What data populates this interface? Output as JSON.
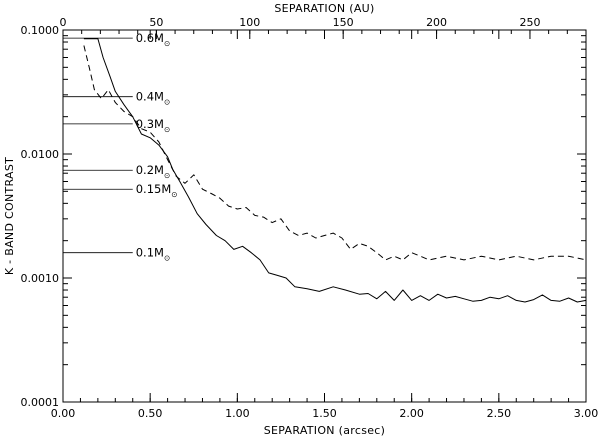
{
  "chart_data": {
    "type": "line",
    "title": "",
    "xlabel": "SEPARATION (arcsec)",
    "ylabel": "K - BAND CONTRAST",
    "top_xlabel": "SEPARATION (AU)",
    "xlim": [
      0,
      3.0
    ],
    "ylim": [
      0.0001,
      0.1
    ],
    "yscale": "log",
    "top_xlim": [
      0,
      280
    ],
    "x_ticks": [
      "0.00",
      "0.50",
      "1.00",
      "1.50",
      "2.00",
      "2.50",
      "3.00"
    ],
    "x_tick_values": [
      0,
      0.5,
      1.0,
      1.5,
      2.0,
      2.5,
      3.0
    ],
    "y_ticks": [
      "0.0001",
      "0.0010",
      "0.0100",
      "0.1000"
    ],
    "y_tick_values": [
      0.0001,
      0.001,
      0.01,
      0.1
    ],
    "top_x_ticks": [
      "0",
      "50",
      "100",
      "150",
      "200",
      "250"
    ],
    "top_x_tick_values": [
      0,
      50,
      100,
      150,
      200,
      250
    ],
    "grid": false,
    "series": [
      {
        "style": "solid",
        "x": [
          0.12,
          0.17,
          0.2,
          0.23,
          0.27,
          0.3,
          0.35,
          0.4,
          0.45,
          0.5,
          0.55,
          0.6,
          0.63,
          0.67,
          0.72,
          0.77,
          0.82,
          0.88,
          0.93,
          0.98,
          1.03,
          1.08,
          1.13,
          1.18,
          1.23,
          1.28,
          1.33,
          1.4,
          1.47,
          1.55,
          1.62,
          1.7,
          1.75,
          1.8,
          1.85,
          1.9,
          1.95,
          2.0,
          2.05,
          2.1,
          2.15,
          2.2,
          2.25,
          2.3,
          2.35,
          2.4,
          2.45,
          2.5,
          2.55,
          2.6,
          2.65,
          2.7,
          2.75,
          2.8,
          2.85,
          2.9,
          2.95,
          3.0
        ],
        "y": [
          0.085,
          0.085,
          0.085,
          0.06,
          0.042,
          0.032,
          0.025,
          0.02,
          0.0145,
          0.0135,
          0.0118,
          0.0095,
          0.0075,
          0.006,
          0.0045,
          0.0033,
          0.0027,
          0.0022,
          0.002,
          0.0017,
          0.0018,
          0.0016,
          0.0014,
          0.0011,
          0.00105,
          0.001,
          0.00085,
          0.00082,
          0.00078,
          0.00085,
          0.0008,
          0.00074,
          0.00075,
          0.00068,
          0.00078,
          0.00066,
          0.0008,
          0.00066,
          0.00072,
          0.00066,
          0.00074,
          0.00069,
          0.00071,
          0.00068,
          0.00065,
          0.00066,
          0.0007,
          0.00068,
          0.00072,
          0.00066,
          0.00064,
          0.00067,
          0.00073,
          0.00066,
          0.00065,
          0.00069,
          0.00064,
          0.00066
        ]
      },
      {
        "style": "dashed",
        "x": [
          0.12,
          0.15,
          0.18,
          0.22,
          0.26,
          0.3,
          0.35,
          0.4,
          0.45,
          0.5,
          0.55,
          0.6,
          0.65,
          0.7,
          0.75,
          0.8,
          0.85,
          0.9,
          0.95,
          1.0,
          1.05,
          1.1,
          1.15,
          1.2,
          1.25,
          1.3,
          1.35,
          1.4,
          1.45,
          1.5,
          1.55,
          1.6,
          1.65,
          1.7,
          1.75,
          1.8,
          1.85,
          1.9,
          1.95,
          2.0,
          2.05,
          2.1,
          2.2,
          2.3,
          2.4,
          2.5,
          2.6,
          2.7,
          2.8,
          2.9,
          3.0
        ],
        "y": [
          0.075,
          0.05,
          0.033,
          0.028,
          0.033,
          0.026,
          0.022,
          0.02,
          0.016,
          0.015,
          0.0125,
          0.009,
          0.0066,
          0.0058,
          0.0068,
          0.0052,
          0.0048,
          0.0044,
          0.0038,
          0.0036,
          0.0037,
          0.0032,
          0.0031,
          0.0028,
          0.003,
          0.0024,
          0.0022,
          0.0023,
          0.0021,
          0.0022,
          0.0023,
          0.0021,
          0.0017,
          0.0019,
          0.0018,
          0.0016,
          0.0014,
          0.0015,
          0.0014,
          0.0016,
          0.0015,
          0.0014,
          0.0015,
          0.0014,
          0.0015,
          0.0014,
          0.0015,
          0.0014,
          0.0015,
          0.0015,
          0.0014
        ]
      }
    ],
    "annotations": [
      {
        "label": "0.6M",
        "sub": "⊙",
        "y": 0.086,
        "x_start": 0.0,
        "x_end": 0.4
      },
      {
        "label": "0.4M",
        "sub": "⊙",
        "y": 0.029,
        "x_start": 0.0,
        "x_end": 0.4
      },
      {
        "label": "0.3M",
        "sub": "⊙",
        "y": 0.0175,
        "x_start": 0.0,
        "x_end": 0.4
      },
      {
        "label": "0.2M",
        "sub": "⊙",
        "y": 0.0074,
        "x_start": 0.0,
        "x_end": 0.4
      },
      {
        "label": "0.15M",
        "sub": "⊙",
        "y": 0.0052,
        "x_start": 0.0,
        "x_end": 0.4
      },
      {
        "label": "0.1M",
        "sub": "⊙",
        "y": 0.0016,
        "x_start": 0.0,
        "x_end": 0.4
      }
    ]
  }
}
